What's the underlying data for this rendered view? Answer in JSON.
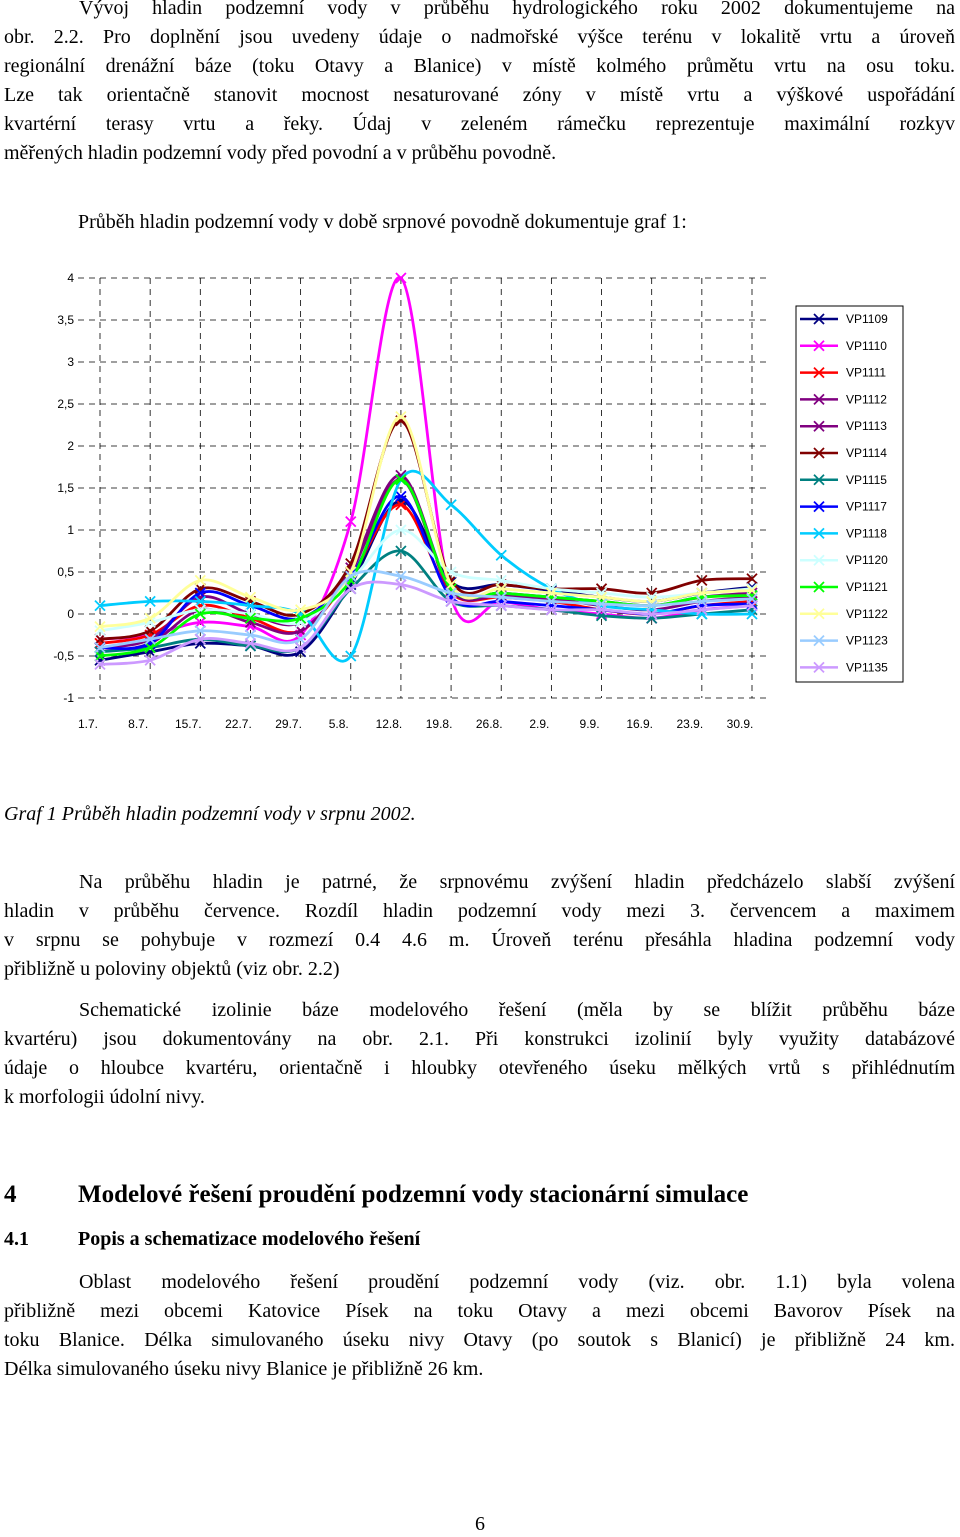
{
  "intro_paragraph": [
    "Vývoj hladin podzemní vody v průběhu hydrologického roku 2002 dokumentujeme na",
    "obr. 2.2. Pro doplnění jsou uvedeny údaje o nadmořské výšce terénu v lokalitě vrtu a úroveň",
    "regionální drenážní báze (toku Otavy a Blanice) v místě kolmého průmětu vrtu na osu toku.",
    "Lze tak orientačně stanovit mocnost nesaturované zóny v místě vrtu a výškové uspořádání",
    "kvartérní terasy vrtu a řeky. Údaj v zeleném rámečku reprezentuje maximální rozkyv",
    "měřených hladin podzemní vody před povodní a v průběhu povodně."
  ],
  "graph_intro": "Průběh hladin podzemní vody v době srpnové povodně dokumentuje graf 1:",
  "chart_data": {
    "type": "line",
    "title": "",
    "xlabel": "",
    "ylabel": "",
    "ylim": [
      -1,
      4
    ],
    "grid": true,
    "legend": "right",
    "y_ticks": [
      "4",
      "3,5",
      "3",
      "2,5",
      "2",
      "1,5",
      "1",
      "0,5",
      "0",
      "-0,5",
      "-1"
    ],
    "x_ticks": [
      "1.7.",
      "8.7.",
      "15.7.",
      "22.7.",
      "29.7.",
      "5.8.",
      "12.8.",
      "19.8.",
      "26.8.",
      "2.9.",
      "9.9.",
      "16.9.",
      "23.9.",
      "30.9."
    ],
    "x": [
      "1.7.",
      "8.7.",
      "15.7.",
      "22.7.",
      "29.7.",
      "5.8.",
      "12.8.",
      "19.8.",
      "26.8.",
      "2.9.",
      "9.9.",
      "16.9.",
      "23.9.",
      "30.9."
    ],
    "series": [
      {
        "name": "VP1109",
        "color": "#000080",
        "values": [
          -0.55,
          -0.45,
          -0.35,
          -0.38,
          -0.45,
          0.35,
          1.35,
          0.38,
          0.35,
          0.28,
          0.2,
          0.15,
          0.25,
          0.32
        ]
      },
      {
        "name": "VP1110",
        "color": "#ff00ff",
        "values": [
          -0.3,
          -0.25,
          -0.1,
          -0.15,
          -0.25,
          1.1,
          4.0,
          0.2,
          0.15,
          0.05,
          0.0,
          -0.05,
          0.05,
          0.1
        ]
      },
      {
        "name": "VP1111",
        "color": "#ff0000",
        "values": [
          -0.35,
          -0.25,
          0.1,
          -0.05,
          -0.2,
          0.45,
          1.3,
          0.25,
          0.2,
          0.15,
          0.05,
          0.0,
          0.1,
          0.15
        ]
      },
      {
        "name": "VP1112",
        "color": "#800080",
        "values": [
          -0.4,
          -0.3,
          0.2,
          0.0,
          -0.1,
          0.55,
          1.65,
          0.3,
          0.25,
          0.2,
          0.15,
          0.1,
          0.2,
          0.25
        ]
      },
      {
        "name": "VP1113",
        "color": "#800080",
        "values": [
          -0.45,
          -0.35,
          0.05,
          -0.1,
          -0.2,
          0.5,
          1.6,
          0.28,
          0.22,
          0.18,
          0.1,
          0.05,
          0.15,
          0.2
        ]
      },
      {
        "name": "VP1114",
        "color": "#800000",
        "values": [
          -0.3,
          -0.2,
          0.3,
          0.15,
          0.0,
          0.6,
          2.3,
          0.4,
          0.35,
          0.3,
          0.3,
          0.25,
          0.4,
          0.42
        ]
      },
      {
        "name": "VP1115",
        "color": "#008080",
        "values": [
          -0.45,
          -0.4,
          -0.3,
          -0.38,
          -0.4,
          0.3,
          0.75,
          0.15,
          0.1,
          0.05,
          -0.02,
          -0.05,
          0.0,
          0.05
        ]
      },
      {
        "name": "VP1117",
        "color": "#0000ff",
        "values": [
          -0.4,
          -0.35,
          0.25,
          0.1,
          -0.05,
          0.45,
          1.4,
          0.2,
          0.15,
          0.1,
          0.05,
          0.0,
          0.1,
          0.12
        ]
      },
      {
        "name": "VP1118",
        "color": "#00ccff",
        "values": [
          0.1,
          0.15,
          0.15,
          0.1,
          0.0,
          -0.5,
          1.6,
          1.3,
          0.7,
          0.3,
          0.1,
          0.05,
          0.0,
          0.0
        ]
      },
      {
        "name": "VP1120",
        "color": "#ccffff",
        "values": [
          -0.2,
          -0.1,
          0.05,
          0.0,
          -0.1,
          0.4,
          1.0,
          0.5,
          0.4,
          0.3,
          0.25,
          0.2,
          0.25,
          0.3
        ]
      },
      {
        "name": "VP1121",
        "color": "#00ff00",
        "values": [
          -0.5,
          -0.4,
          0.0,
          -0.05,
          -0.05,
          0.4,
          1.6,
          0.3,
          0.25,
          0.2,
          0.15,
          0.1,
          0.2,
          0.22
        ]
      },
      {
        "name": "VP1122",
        "color": "#ffff99",
        "values": [
          -0.15,
          -0.05,
          0.4,
          0.2,
          0.05,
          0.5,
          2.35,
          0.35,
          0.3,
          0.25,
          0.2,
          0.15,
          0.25,
          0.28
        ]
      },
      {
        "name": "VP1123",
        "color": "#99ccff",
        "values": [
          -0.4,
          -0.3,
          -0.2,
          -0.25,
          -0.3,
          0.45,
          0.45,
          0.25,
          0.2,
          0.15,
          0.12,
          0.1,
          0.15,
          0.18
        ]
      },
      {
        "name": "VP1135",
        "color": "#cc99ff",
        "values": [
          -0.6,
          -0.55,
          -0.3,
          -0.35,
          -0.4,
          0.3,
          0.35,
          0.15,
          0.1,
          0.05,
          0.05,
          0.0,
          0.05,
          0.1
        ]
      }
    ]
  },
  "figure_caption": "Graf 1 Průběh hladin podzemní vody v srpnu 2002.",
  "paragraph_2": [
    "Na průběhu hladin je patrné, že srpnovému zvýšení hladin předcházelo slabší zvýšení",
    "hladin v průběhu července. Rozdíl hladin podzemní vody mezi 3. červencem a maximem",
    "v srpnu se pohybuje v rozmezí 0.4 4.6 m. Úroveň terénu přesáhla hladina podzemní vody",
    "přibližně u poloviny objektů (viz obr. 2.2)"
  ],
  "paragraph_3": [
    "Schematické izolinie báze modelového řešení (měla by se blížit průběhu báze",
    "kvartéru) jsou dokumentovány na obr. 2.1. Při konstrukci izolinií byly využity databázové",
    "údaje o hloubce kvartéru, orientačně i hloubky otevřeného úseku mělkých vrtů s přihlédnutím",
    "k morfologii údolní nivy."
  ],
  "section_heading": {
    "number": "4",
    "title": "Modelové řešení proudění podzemní vody stacionární simulace"
  },
  "subsection_heading": {
    "number": "4.1",
    "title": "Popis a schematizace modelového řešení"
  },
  "paragraph_4": [
    "Oblast modelového řešení proudění podzemní vody (viz. obr. 1.1) byla volena",
    "přibližně mezi obcemi Katovice Písek na toku Otavy a mezi obcemi Bavorov Písek na",
    "toku Blanice. Délka simulovaného úseku nivy Otavy (po soutok s Blanicí) je přibližně 24 km.",
    "Délka simulovaného úseku nivy Blanice je přibližně 26 km."
  ],
  "page_number": "6"
}
